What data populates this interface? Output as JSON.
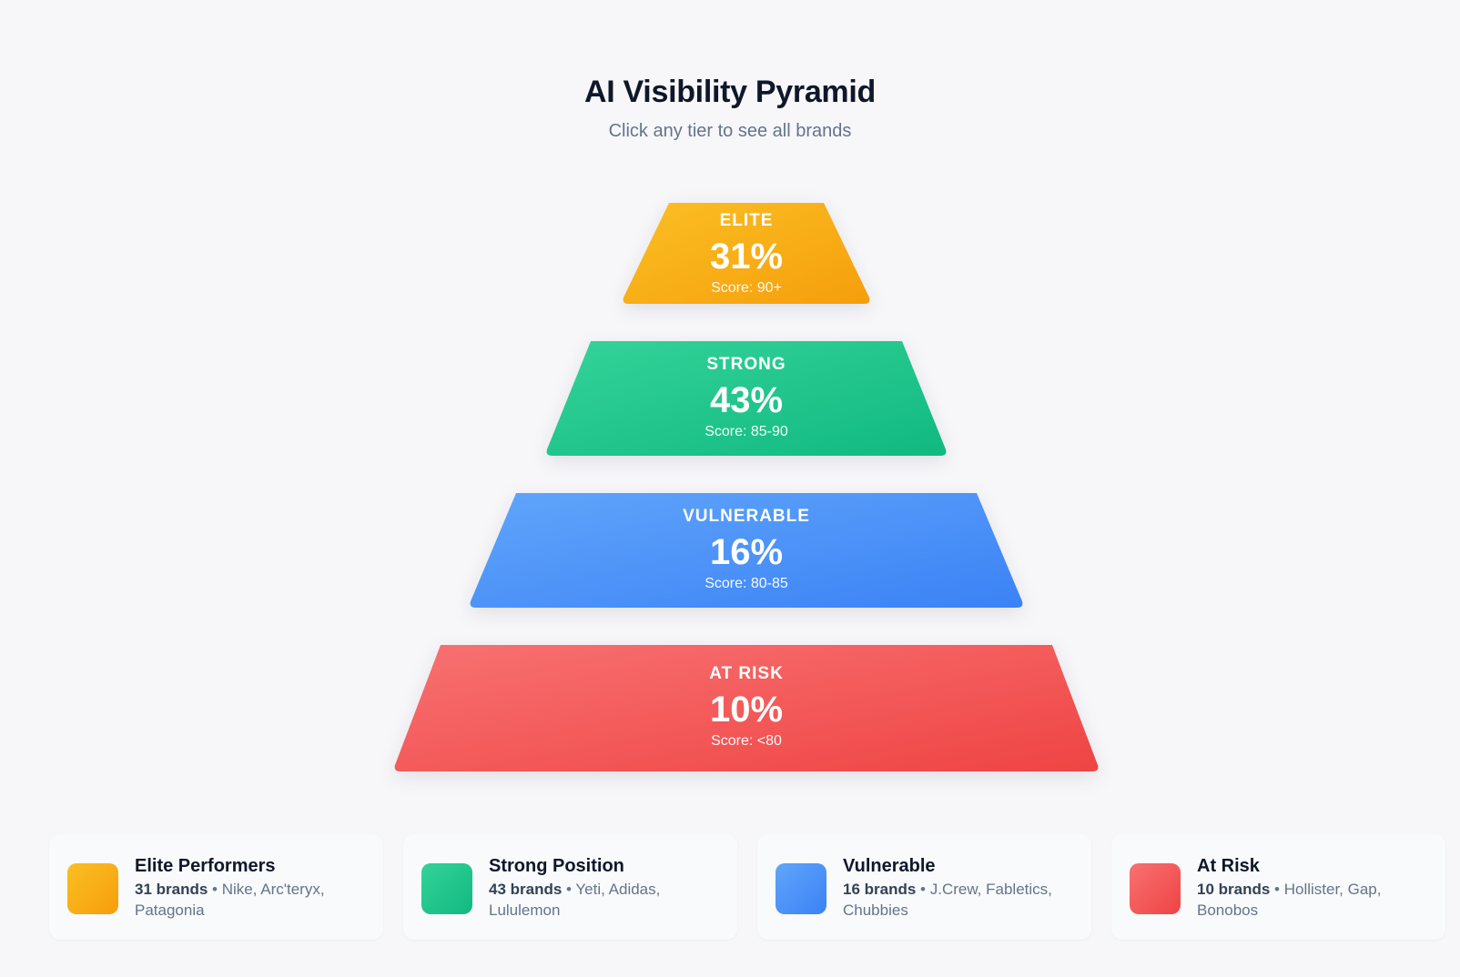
{
  "header": {
    "title": "AI Visibility Pyramid",
    "subtitle": "Click any tier to see all brands"
  },
  "tiers": [
    {
      "name": "ELITE",
      "percent": "31%",
      "score": "Score: 90+",
      "color_start": "#fbbf24",
      "color_end": "#f59e0b"
    },
    {
      "name": "STRONG",
      "percent": "43%",
      "score": "Score: 85-90",
      "color_start": "#34d399",
      "color_end": "#10b981"
    },
    {
      "name": "VULNERABLE",
      "percent": "16%",
      "score": "Score: 80-85",
      "color_start": "#60a5fa",
      "color_end": "#3b82f6"
    },
    {
      "name": "AT RISK",
      "percent": "10%",
      "score": "Score: <80",
      "color_start": "#f87171",
      "color_end": "#ef4444"
    }
  ],
  "legend": [
    {
      "title": "Elite Performers",
      "count": "31 brands",
      "separator": " • ",
      "brands": "Nike, Arc'teryx, Patagonia"
    },
    {
      "title": "Strong Position",
      "count": "43 brands",
      "separator": " • ",
      "brands": "Yeti, Adidas, Lululemon"
    },
    {
      "title": "Vulnerable",
      "count": "16 brands",
      "separator": " • ",
      "brands": "J.Crew, Fabletics, Chubbies"
    },
    {
      "title": "At Risk",
      "count": "10 brands",
      "separator": " • ",
      "brands": "Hollister, Gap, Bonobos"
    }
  ]
}
